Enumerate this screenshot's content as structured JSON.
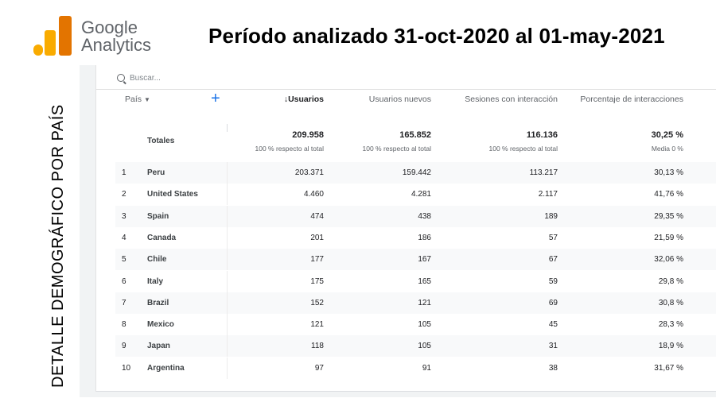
{
  "logo": {
    "line1": "Google",
    "line2": "Analytics"
  },
  "slide_title": "Período analizado 31-oct-2020 al 01-may-2021",
  "side_title": "DETALLE  DEMOGRÁFICO  POR PAÍS",
  "search": {
    "placeholder": "Buscar..."
  },
  "table": {
    "dimension_label": "País",
    "columns": [
      "Usuarios",
      "Usuarios nuevos",
      "Sesiones con interacción",
      "Porcentaje de interacciones"
    ],
    "sort_indicator": "↓",
    "totals": {
      "label": "Totales",
      "values": [
        "209.958",
        "165.852",
        "116.136",
        "30,25 %"
      ],
      "subs": [
        "100 % respecto al total",
        "100 % respecto al total",
        "100 % respecto al total",
        "Media 0 %"
      ]
    },
    "rows": [
      {
        "rank": "1",
        "country": "Peru",
        "users": "203.371",
        "new_users": "159.442",
        "engaged": "113.217",
        "rate": "30,13 %"
      },
      {
        "rank": "2",
        "country": "United States",
        "users": "4.460",
        "new_users": "4.281",
        "engaged": "2.117",
        "rate": "41,76 %"
      },
      {
        "rank": "3",
        "country": "Spain",
        "users": "474",
        "new_users": "438",
        "engaged": "189",
        "rate": "29,35 %"
      },
      {
        "rank": "4",
        "country": "Canada",
        "users": "201",
        "new_users": "186",
        "engaged": "57",
        "rate": "21,59 %"
      },
      {
        "rank": "5",
        "country": "Chile",
        "users": "177",
        "new_users": "167",
        "engaged": "67",
        "rate": "32,06 %"
      },
      {
        "rank": "6",
        "country": "Italy",
        "users": "175",
        "new_users": "165",
        "engaged": "59",
        "rate": "29,8 %"
      },
      {
        "rank": "7",
        "country": "Brazil",
        "users": "152",
        "new_users": "121",
        "engaged": "69",
        "rate": "30,8 %"
      },
      {
        "rank": "8",
        "country": "Mexico",
        "users": "121",
        "new_users": "105",
        "engaged": "45",
        "rate": "28,3 %"
      },
      {
        "rank": "9",
        "country": "Japan",
        "users": "118",
        "new_users": "105",
        "engaged": "31",
        "rate": "18,9 %"
      },
      {
        "rank": "10",
        "country": "Argentina",
        "users": "97",
        "new_users": "91",
        "engaged": "38",
        "rate": "31,67 %"
      }
    ]
  }
}
